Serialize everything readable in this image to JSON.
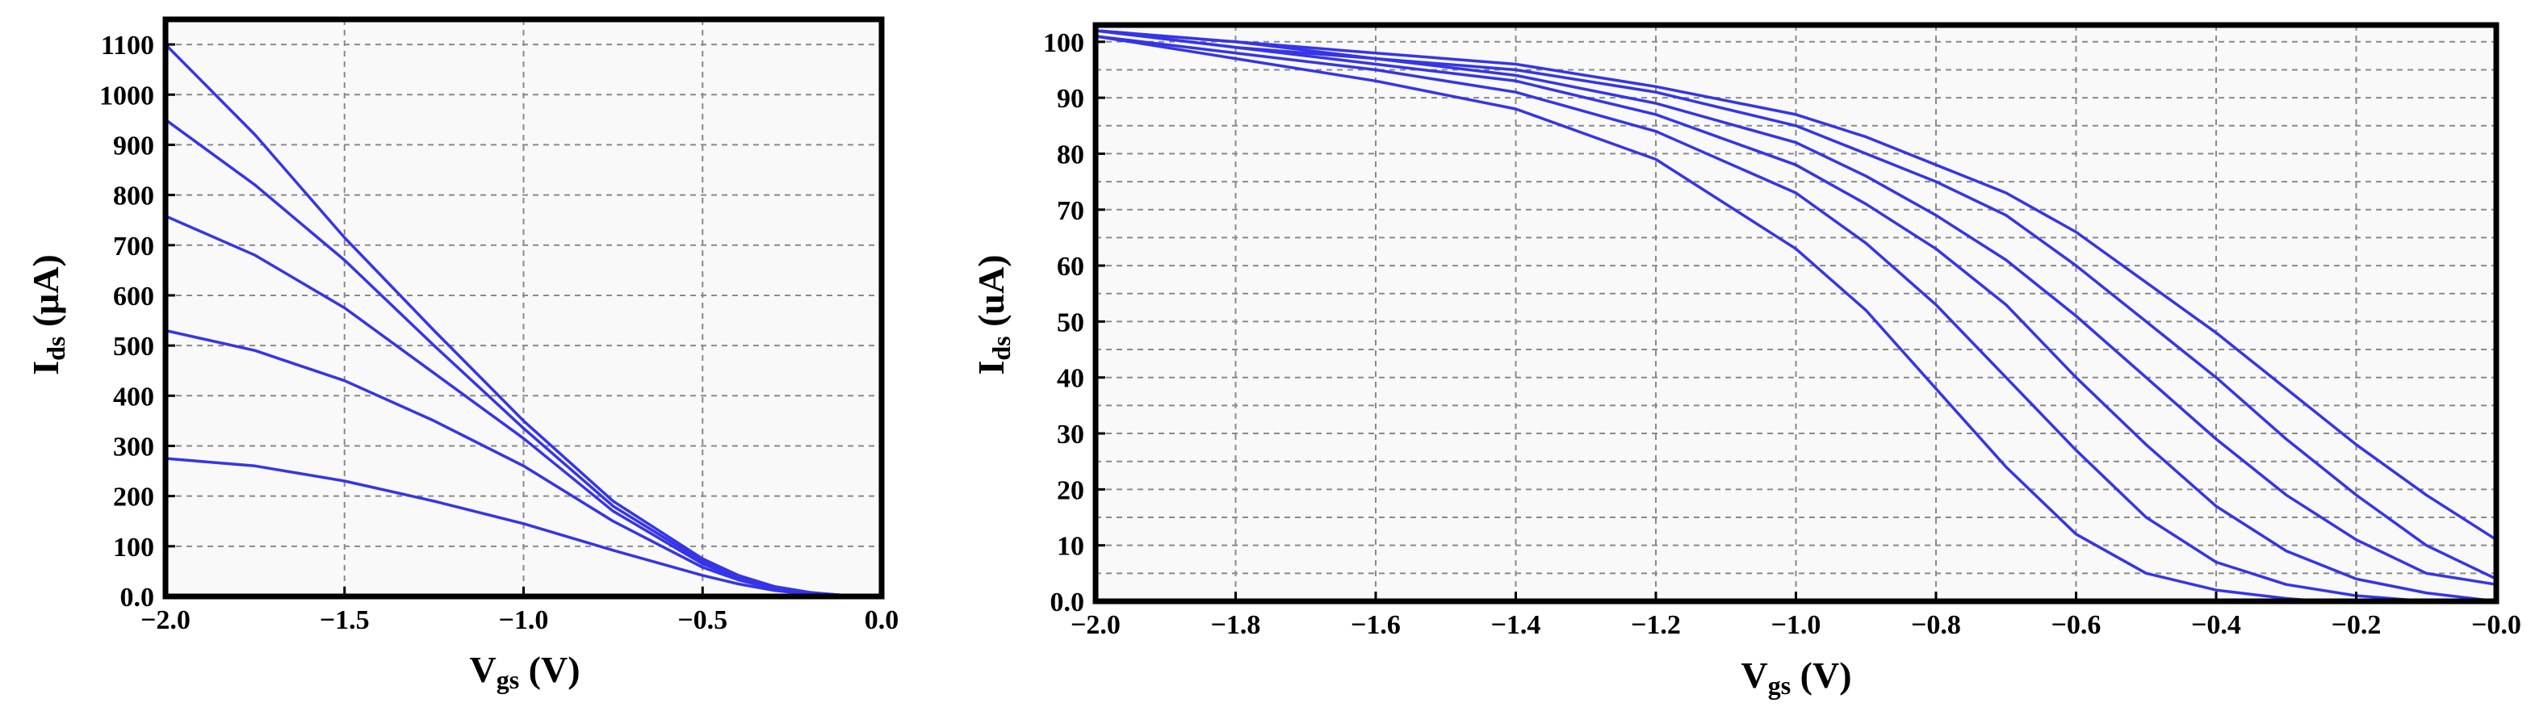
{
  "colors": {
    "curve": "#3535e8"
  },
  "chart_data": [
    {
      "type": "line",
      "title": "",
      "xlabel": {
        "main": "V",
        "sub": "gs",
        "rest": " (V)"
      },
      "ylabel": {
        "main": "I",
        "sub": "ds",
        "rest": " (μA)"
      },
      "xlim": [
        -2.0,
        0.0
      ],
      "ylim": [
        0,
        1150
      ],
      "xticks": [
        -2.0,
        -1.5,
        -1.0,
        -0.5,
        0.0
      ],
      "xtick_labels": [
        "−2.0",
        "−1.5",
        "−1.0",
        "−0.5",
        "0.0"
      ],
      "yticks": [
        0,
        100,
        200,
        300,
        400,
        500,
        600,
        700,
        800,
        900,
        1000,
        1100
      ],
      "ytick_labels": [
        "0.0",
        "100",
        "200",
        "300",
        "400",
        "500",
        "600",
        "700",
        "800",
        "900",
        "1000",
        "1100"
      ],
      "grid": true,
      "series": [
        {
          "x": [
            -2.0,
            -1.75,
            -1.5,
            -1.25,
            -1.0,
            -0.75,
            -0.5,
            -0.4,
            -0.3,
            -0.2,
            -0.1,
            0.0
          ],
          "y": [
            1100,
            920,
            715,
            530,
            350,
            190,
            75,
            42,
            20,
            8,
            2,
            0
          ]
        },
        {
          "x": [
            -2.0,
            -1.75,
            -1.5,
            -1.25,
            -1.0,
            -0.75,
            -0.5,
            -0.4,
            -0.3,
            -0.2,
            -0.1,
            0.0
          ],
          "y": [
            950,
            820,
            670,
            500,
            335,
            180,
            70,
            40,
            19,
            7,
            2,
            0
          ]
        },
        {
          "x": [
            -2.0,
            -1.75,
            -1.5,
            -1.25,
            -1.0,
            -0.75,
            -0.5,
            -0.4,
            -0.3,
            -0.2,
            -0.1,
            0.0
          ],
          "y": [
            758,
            680,
            575,
            445,
            315,
            170,
            65,
            37,
            17,
            6,
            2,
            0
          ]
        },
        {
          "x": [
            -2.0,
            -1.75,
            -1.5,
            -1.25,
            -1.0,
            -0.75,
            -0.5,
            -0.4,
            -0.3,
            -0.2,
            -0.1,
            0.0
          ],
          "y": [
            530,
            490,
            430,
            350,
            260,
            150,
            58,
            33,
            15,
            5,
            1,
            0
          ]
        },
        {
          "x": [
            -2.0,
            -1.75,
            -1.5,
            -1.25,
            -1.0,
            -0.75,
            -0.5,
            -0.4,
            -0.3,
            -0.2,
            -0.1,
            0.0
          ],
          "y": [
            275,
            260,
            230,
            190,
            145,
            92,
            42,
            25,
            12,
            4,
            1,
            0
          ]
        }
      ]
    },
    {
      "type": "line",
      "title": "",
      "xlabel": {
        "main": "V",
        "sub": "gs",
        "rest": " (V)"
      },
      "ylabel": {
        "main": "I",
        "sub": "ds",
        "rest": " (uA)"
      },
      "xlim": [
        -2.0,
        0.0
      ],
      "ylim": [
        0,
        103
      ],
      "xticks": [
        -2.0,
        -1.8,
        -1.6,
        -1.4,
        -1.2,
        -1.0,
        -0.8,
        -0.6,
        -0.4,
        -0.2,
        0.0
      ],
      "xtick_labels": [
        "−2.0",
        "−1.8",
        "−1.6",
        "−1.4",
        "−1.2",
        "−1.0",
        "−0.8",
        "−0.6",
        "−0.4",
        "−0.2",
        "−0.0"
      ],
      "yticks": [
        0,
        10,
        20,
        30,
        40,
        50,
        60,
        70,
        80,
        90,
        100
      ],
      "ytick_labels": [
        "0.0",
        "10",
        "20",
        "30",
        "40",
        "50",
        "60",
        "70",
        "80",
        "90",
        "100"
      ],
      "grid": true,
      "series": [
        {
          "x": [
            -2.0,
            -1.8,
            -1.6,
            -1.4,
            -1.2,
            -1.0,
            -0.9,
            -0.8,
            -0.7,
            -0.6,
            -0.5,
            -0.4,
            -0.3,
            -0.25
          ],
          "y": [
            101,
            97,
            93,
            88,
            79,
            63,
            52,
            38,
            24,
            12,
            5,
            2,
            0.5,
            0
          ]
        },
        {
          "x": [
            -2.0,
            -1.8,
            -1.6,
            -1.4,
            -1.2,
            -1.0,
            -0.9,
            -0.8,
            -0.7,
            -0.6,
            -0.5,
            -0.4,
            -0.3,
            -0.2,
            -0.1
          ],
          "y": [
            101,
            98,
            95,
            91,
            84,
            73,
            64,
            53,
            40,
            27,
            15,
            7,
            3,
            1,
            0
          ]
        },
        {
          "x": [
            -2.0,
            -1.8,
            -1.6,
            -1.4,
            -1.2,
            -1.0,
            -0.9,
            -0.8,
            -0.7,
            -0.6,
            -0.5,
            -0.4,
            -0.3,
            -0.2,
            -0.1,
            0.0
          ],
          "y": [
            102,
            99,
            96,
            93,
            87,
            78,
            71,
            63,
            53,
            40,
            28,
            17,
            9,
            4,
            1.5,
            0
          ]
        },
        {
          "x": [
            -2.0,
            -1.8,
            -1.6,
            -1.4,
            -1.2,
            -1.0,
            -0.9,
            -0.8,
            -0.7,
            -0.6,
            -0.5,
            -0.4,
            -0.3,
            -0.2,
            -0.1,
            0.0
          ],
          "y": [
            102,
            99,
            97,
            94,
            89,
            82,
            76,
            69,
            61,
            51,
            40,
            29,
            19,
            11,
            5,
            3
          ]
        },
        {
          "x": [
            -2.0,
            -1.8,
            -1.6,
            -1.4,
            -1.2,
            -1.0,
            -0.9,
            -0.8,
            -0.7,
            -0.6,
            -0.5,
            -0.4,
            -0.3,
            -0.2,
            -0.1,
            0.0
          ],
          "y": [
            102,
            100,
            97,
            95,
            91,
            85,
            80,
            75,
            69,
            60,
            50,
            40,
            29,
            19,
            10,
            4
          ]
        },
        {
          "x": [
            -2.0,
            -1.8,
            -1.6,
            -1.4,
            -1.2,
            -1.0,
            -0.9,
            -0.8,
            -0.7,
            -0.6,
            -0.5,
            -0.4,
            -0.3,
            -0.2,
            -0.1,
            0.0
          ],
          "y": [
            102,
            100,
            98,
            96,
            92,
            87,
            83,
            78,
            73,
            66,
            57,
            48,
            38,
            28,
            19,
            11
          ]
        }
      ]
    }
  ]
}
